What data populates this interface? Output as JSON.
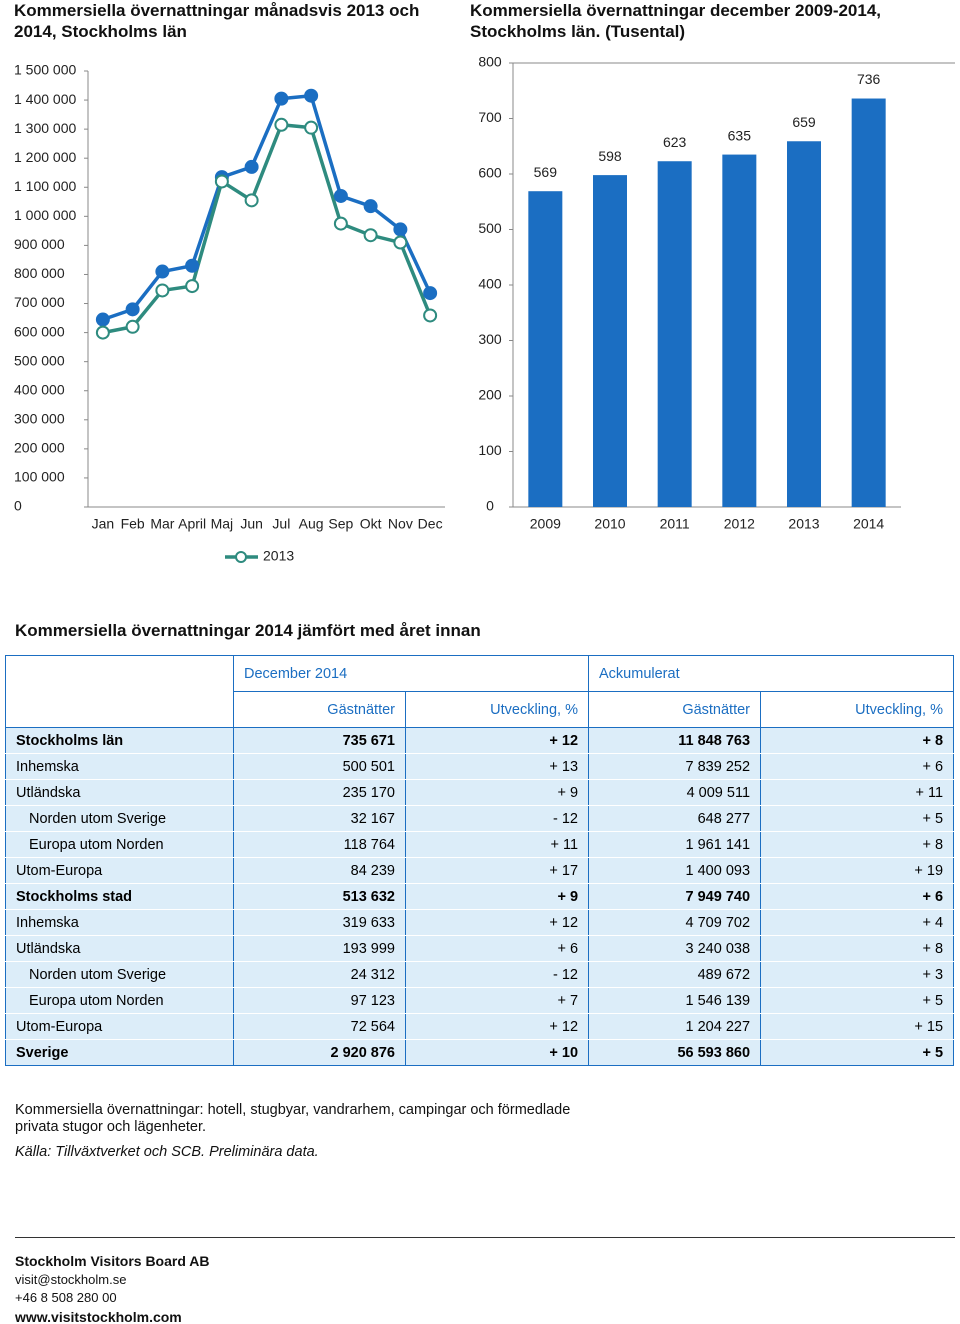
{
  "chart_data": [
    {
      "type": "line",
      "title": "Kommersiella övernattningar månadsvis 2013 och 2014, Stockholms län",
      "categories": [
        "Jan",
        "Feb",
        "Mar",
        "April",
        "Maj",
        "Jun",
        "Jul",
        "Aug",
        "Sep",
        "Okt",
        "Nov",
        "Dec"
      ],
      "series": [
        {
          "color": "#1b6ec2",
          "marker": "filled",
          "values": [
            645000,
            680000,
            810000,
            830000,
            1135000,
            1170000,
            1405000,
            1415000,
            1070000,
            1035000,
            955000,
            736000
          ]
        },
        {
          "name": "2013",
          "color": "#2e8b7f",
          "marker": "hollow",
          "values": [
            600000,
            620000,
            745000,
            760000,
            1120000,
            1055000,
            1315000,
            1305000,
            975000,
            935000,
            910000,
            659000
          ]
        }
      ],
      "ylim": [
        0,
        1500000
      ],
      "yticks": [
        0,
        {
          "value": 100000,
          "label": "100 000"
        },
        {
          "value": 200000,
          "label": "200 000"
        },
        {
          "value": 300000,
          "label": "300 000"
        },
        {
          "value": 400000,
          "label": "400 000"
        },
        {
          "value": 500000,
          "label": "500 000"
        },
        {
          "value": 600000,
          "label": "600 000"
        },
        {
          "value": 700000,
          "label": "700 000"
        },
        {
          "value": 800000,
          "label": "800 000"
        },
        {
          "value": 900000,
          "label": "900 000"
        },
        {
          "value": 1000000,
          "label": "1 000 000"
        },
        {
          "value": 1100000,
          "label": "1 100 000"
        },
        {
          "value": 1200000,
          "label": "1 200 000"
        },
        {
          "value": 1300000,
          "label": "1 300 000"
        },
        {
          "value": 1400000,
          "label": "1 400 000"
        },
        {
          "value": 1500000,
          "label": "1 500 000"
        }
      ],
      "grid": false
    },
    {
      "type": "bar",
      "title": "Kommersiella övernattningar december 2009-2014, Stockholms län. (Tusental)",
      "categories": [
        "2009",
        "2010",
        "2011",
        "2012",
        "2013",
        "2014"
      ],
      "values": [
        569,
        598,
        623,
        635,
        659,
        736
      ],
      "color": "#1b6ec2",
      "ylim": [
        0,
        800
      ],
      "yticks": [
        0,
        100,
        200,
        300,
        400,
        500,
        600,
        700,
        800
      ],
      "grid": false
    }
  ],
  "table": {
    "title": "Kommersiella övernattningar 2014 jämfört med året innan",
    "groups": [
      "December 2014",
      "Ackumulerat"
    ],
    "columns": [
      "Gästnätter",
      "Utveckling, %",
      "Gästnätter",
      "Utveckling, %"
    ],
    "rows": [
      [
        "Stockholms län",
        "735 671",
        "+ 12",
        "11 848 763",
        "+ 8"
      ],
      [
        "Inhemska",
        "500 501",
        "+ 13",
        "7 839 252",
        "+ 6"
      ],
      [
        "Utländska",
        "235 170",
        "+ 9",
        "4 009 511",
        "+ 11"
      ],
      [
        "Norden utom Sverige",
        "32 167",
        "- 12",
        "648 277",
        "+ 5"
      ],
      [
        "Europa utom Norden",
        "118 764",
        "+ 11",
        "1 961 141",
        "+ 8"
      ],
      [
        "Utom-Europa",
        "84 239",
        "+ 17",
        "1 400 093",
        "+ 19"
      ],
      [
        "Stockholms stad",
        "513 632",
        "+ 9",
        "7 949 740",
        "+ 6"
      ],
      [
        "Inhemska",
        "319 633",
        "+ 12",
        "4 709 702",
        "+ 4"
      ],
      [
        "Utländska",
        "193 999",
        "+ 6",
        "3 240 038",
        "+ 8"
      ],
      [
        "Norden utom Sverige",
        "24 312",
        "- 12",
        "489 672",
        "+ 3"
      ],
      [
        "Europa utom Norden",
        "97 123",
        "+ 7",
        "1 546 139",
        "+ 5"
      ],
      [
        "Utom-Europa",
        "72 564",
        "+ 12",
        "1 204 227",
        "+ 15"
      ],
      [
        "Sverige",
        "2 920 876",
        "+ 10",
        "56 593 860",
        "+ 5"
      ]
    ]
  },
  "footer": {
    "note": "Kommersiella övernattningar: hotell, stugbyar, vandrarhem, campingar och förmedlade privata stugor och lägenheter.",
    "source": "Källa: Tillväxtverket och SCB. Preliminära data.",
    "company": "Stockholm Visitors Board AB",
    "email": "visit@stockholm.se",
    "phone": "+46 8 508 280 00",
    "web": "www.visitstockholm.com"
  }
}
